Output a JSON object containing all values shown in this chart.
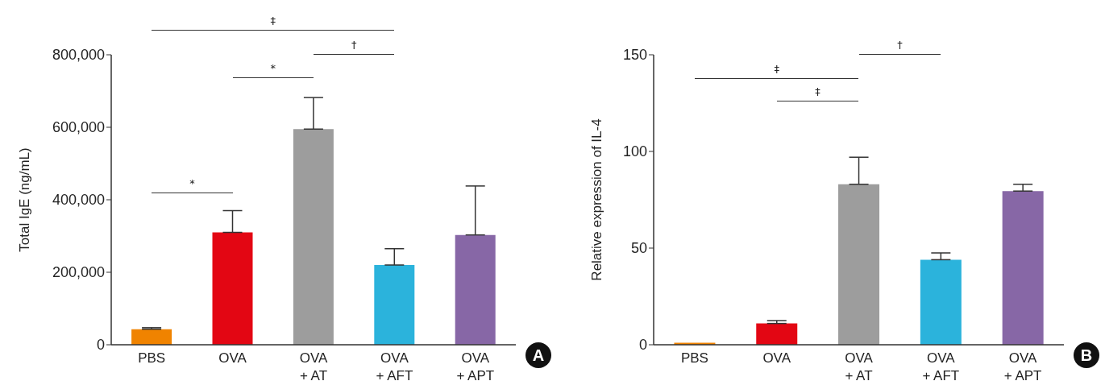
{
  "chart_data": [
    {
      "type": "bar",
      "categories": [
        "PBS",
        "OVA",
        "OVA + AT",
        "OVA + AFT",
        "OVA + APT"
      ],
      "values": [
        43000,
        310000,
        595000,
        220000,
        303000
      ],
      "errors": [
        [
          43000,
          47000
        ],
        [
          310000,
          370000
        ],
        [
          595000,
          682000
        ],
        [
          220000,
          265000
        ],
        [
          303000,
          438000
        ]
      ],
      "colors": [
        "#f08300",
        "#e30613",
        "#9d9d9d",
        "#2bb3dc",
        "#8767a6"
      ],
      "ylabel": "Total IgE (ng/mL)",
      "ylim": [
        0,
        800000
      ],
      "yticks": [
        0,
        {
          "value": 200000,
          "label": "200,000"
        },
        {
          "value": 400000,
          "label": "400,000"
        },
        {
          "value": 600000,
          "label": "600,000"
        },
        {
          "value": 800000,
          "label": "800,000"
        }
      ],
      "grid": false,
      "legend": false,
      "annotations": [
        "‡",
        "†",
        "*",
        "*",
        "A"
      ]
    },
    {
      "type": "bar",
      "categories": [
        "PBS",
        "OVA",
        "OVA + AT",
        "OVA + AFT",
        "OVA + APT"
      ],
      "values": [
        1,
        11,
        83,
        44,
        79.5
      ],
      "errors": [
        null,
        [
          11,
          12.5
        ],
        [
          83,
          97
        ],
        [
          44,
          47.5
        ],
        [
          79.5,
          83
        ]
      ],
      "colors": [
        "#f08300",
        "#e30613",
        "#9d9d9d",
        "#2bb3dc",
        "#8767a6"
      ],
      "ylabel": "Relative expression of IL-4",
      "ylim": [
        0,
        150
      ],
      "yticks": [
        0,
        50,
        100,
        150
      ],
      "grid": false,
      "legend": false,
      "annotations": [
        "†",
        "‡",
        "‡",
        "B"
      ]
    }
  ]
}
